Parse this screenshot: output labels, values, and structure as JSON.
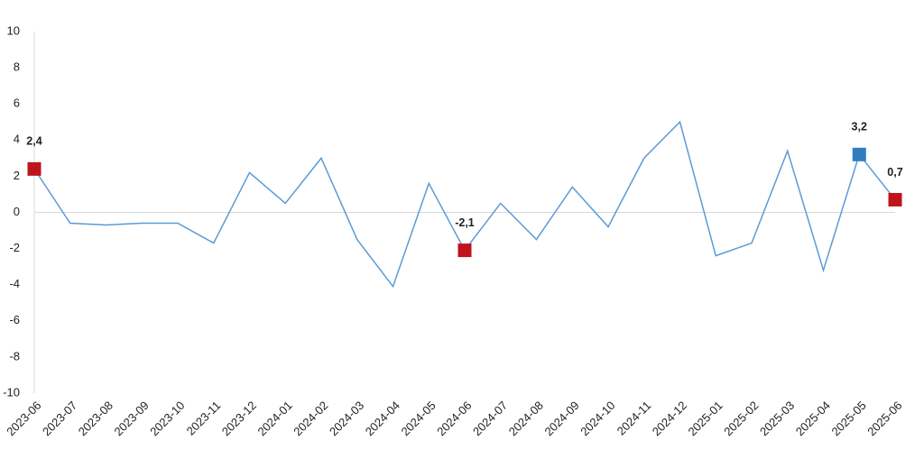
{
  "chart_data": {
    "type": "line",
    "categories": [
      "2023-06",
      "2023-07",
      "2023-08",
      "2023-09",
      "2023-10",
      "2023-11",
      "2023-12",
      "2024-01",
      "2024-02",
      "2024-03",
      "2024-04",
      "2024-05",
      "2024-06",
      "2024-07",
      "2024-08",
      "2024-09",
      "2024-10",
      "2024-11",
      "2024-12",
      "2025-01",
      "2025-02",
      "2025-03",
      "2025-04",
      "2025-05",
      "2025-06"
    ],
    "values": [
      2.4,
      -0.6,
      -0.7,
      -0.6,
      -0.6,
      -1.7,
      2.2,
      0.5,
      3.0,
      -1.5,
      -4.1,
      1.6,
      -2.1,
      0.5,
      -1.5,
      1.4,
      -0.8,
      3.0,
      5.0,
      -2.4,
      -1.7,
      3.4,
      -3.2,
      3.2,
      0.7
    ],
    "value_labels": [
      "2,4",
      null,
      null,
      null,
      null,
      null,
      null,
      null,
      null,
      null,
      null,
      null,
      "-2,1",
      null,
      null,
      null,
      null,
      null,
      null,
      null,
      null,
      null,
      null,
      "3,2",
      "0,7"
    ],
    "marker_colors": [
      "#c0141c",
      null,
      null,
      null,
      null,
      null,
      null,
      null,
      null,
      null,
      null,
      null,
      "#c0141c",
      null,
      null,
      null,
      null,
      null,
      null,
      null,
      null,
      null,
      null,
      "#2e7ebf",
      "#c0141c"
    ],
    "color": "#5b9bd5",
    "ylim": [
      -10,
      10
    ],
    "yticks": [
      -10,
      -8,
      -6,
      -4,
      -2,
      0,
      2,
      4,
      6,
      8,
      10
    ],
    "zero_line": true,
    "grid": false
  }
}
